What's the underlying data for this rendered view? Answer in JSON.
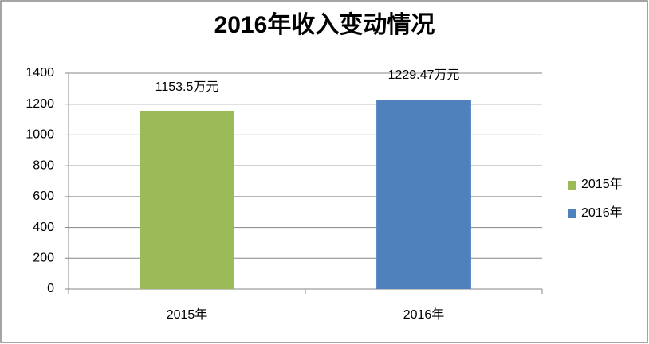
{
  "chart_data": {
    "type": "bar",
    "title": "2016年收入变动情况",
    "categories": [
      "2015年",
      "2016年"
    ],
    "series": [
      {
        "name": "2015年",
        "color": "#9bbb59",
        "values": [
          1153.5,
          null
        ],
        "value_labels": [
          "1153.5万元",
          null
        ]
      },
      {
        "name": "2016年",
        "color": "#4f81bd",
        "values": [
          null,
          1229.47
        ],
        "value_labels": [
          null,
          "1229.47万元"
        ]
      }
    ],
    "ylim": [
      0,
      1400
    ],
    "yticks": [
      0,
      200,
      400,
      600,
      800,
      1000,
      1200,
      1400
    ],
    "grid": true,
    "legend": "right"
  }
}
